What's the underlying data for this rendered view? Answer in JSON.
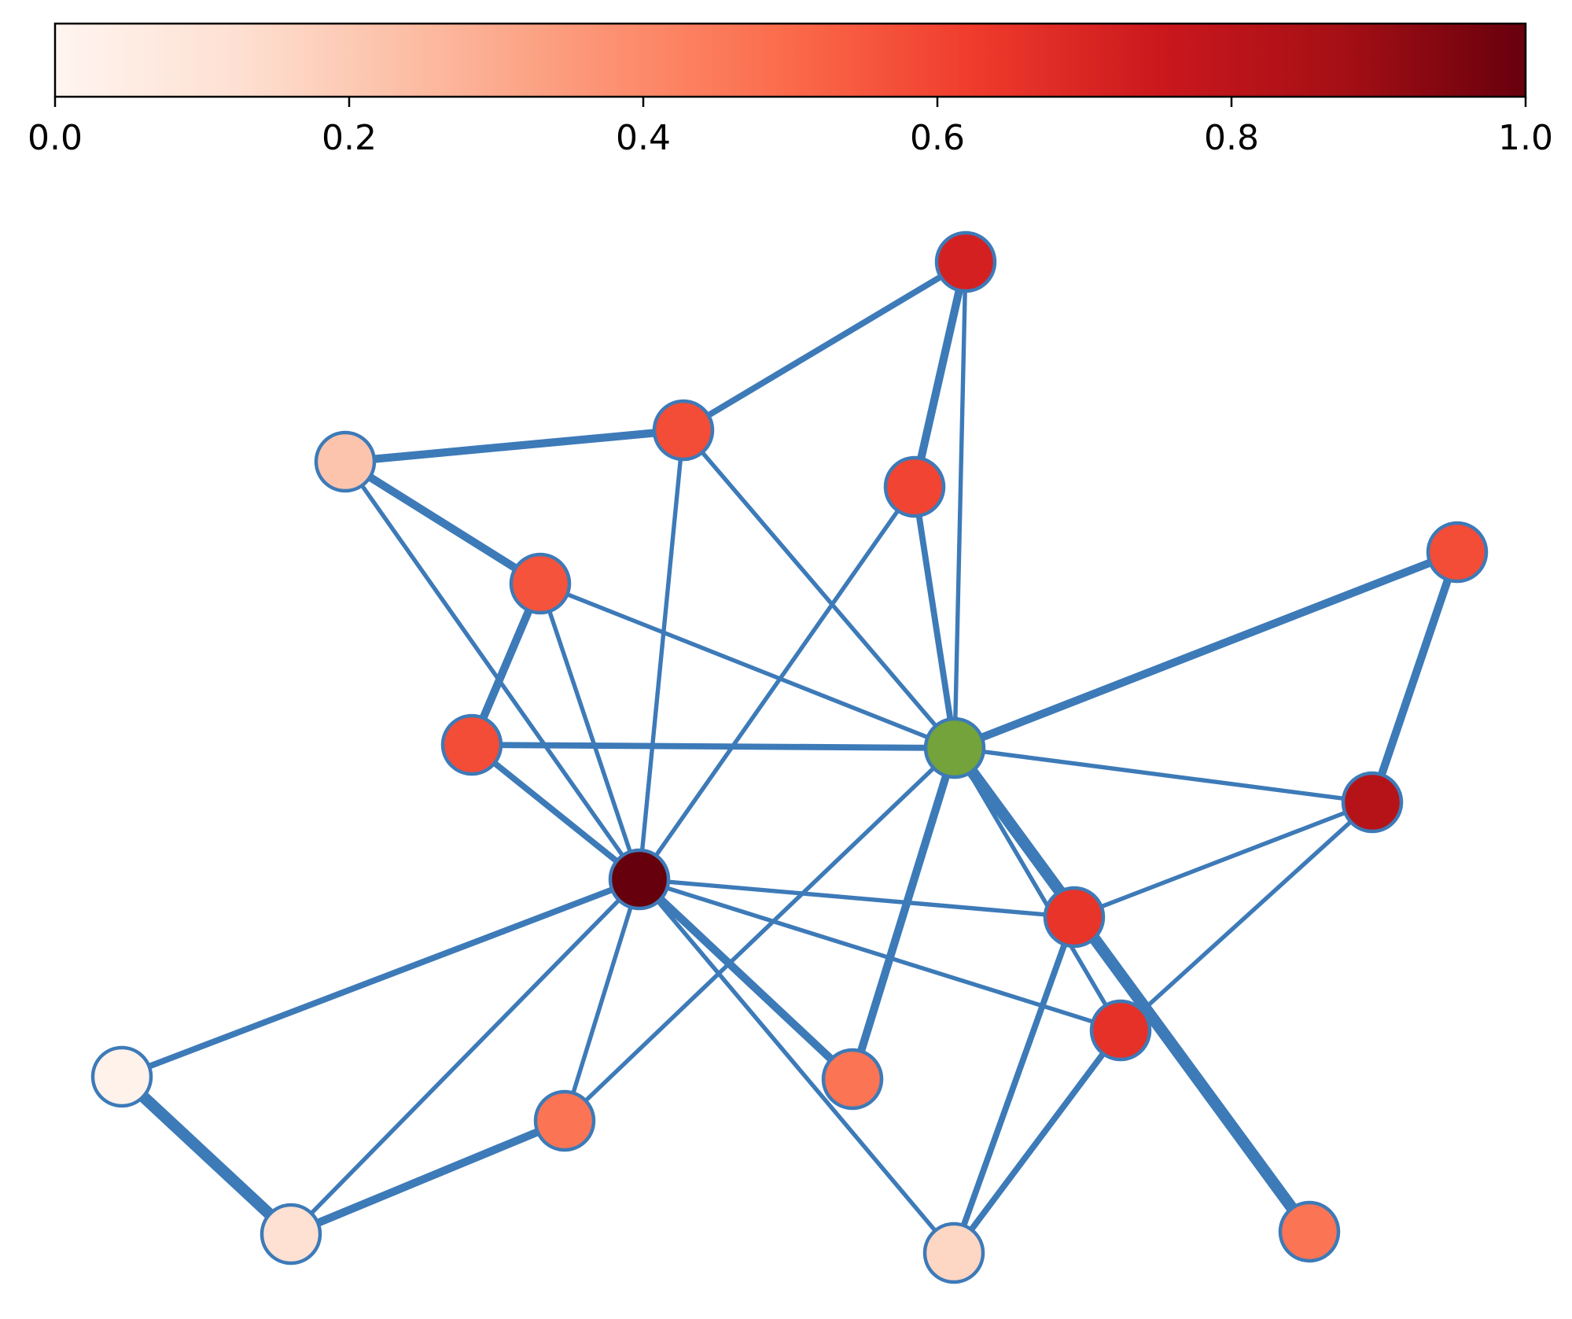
{
  "colorbar": {
    "colormap": "Reds",
    "gradient_stops": [
      "#fff5f0",
      "#fee0d2",
      "#fcbba1",
      "#fc9272",
      "#fb6a4a",
      "#ef3b2c",
      "#cb181d",
      "#a50f15",
      "#67000d"
    ],
    "ticks": [
      {
        "value": 0.0,
        "label": "0.0"
      },
      {
        "value": 0.2,
        "label": "0.2"
      },
      {
        "value": 0.4,
        "label": "0.4"
      },
      {
        "value": 0.6,
        "label": "0.6"
      },
      {
        "value": 0.8,
        "label": "0.8"
      },
      {
        "value": 1.0,
        "label": "1.0"
      }
    ]
  },
  "graph": {
    "edge_color": "#3d7ab8",
    "node_border_color": "#3d7ab8",
    "source_node_color": "#73a33a",
    "nodes": [
      {
        "id": "a",
        "value": 0.72,
        "is_source": false
      },
      {
        "id": "b",
        "value": 0.58,
        "is_source": false
      },
      {
        "id": "c",
        "value": 0.22,
        "is_source": false
      },
      {
        "id": "d",
        "value": 0.6,
        "is_source": false
      },
      {
        "id": "e",
        "value": 0.56,
        "is_source": false
      },
      {
        "id": "f",
        "value": 0.58,
        "is_source": false
      },
      {
        "id": "g",
        "value": 0.58,
        "is_source": false
      },
      {
        "id": "h",
        "value": null,
        "is_source": true
      },
      {
        "id": "i",
        "value": 0.82,
        "is_source": false
      },
      {
        "id": "j",
        "value": 1.0,
        "is_source": false
      },
      {
        "id": "k",
        "value": 0.65,
        "is_source": false
      },
      {
        "id": "l",
        "value": 0.66,
        "is_source": false
      },
      {
        "id": "m",
        "value": 0.02,
        "is_source": false
      },
      {
        "id": "n",
        "value": 0.47,
        "is_source": false
      },
      {
        "id": "o",
        "value": 0.47,
        "is_source": false
      },
      {
        "id": "p",
        "value": 0.12,
        "is_source": false
      },
      {
        "id": "q",
        "value": 0.16,
        "is_source": false
      },
      {
        "id": "r",
        "value": 0.47,
        "is_source": false
      }
    ],
    "edges": [
      {
        "source": "a",
        "target": "b",
        "weight": 2
      },
      {
        "source": "a",
        "target": "d",
        "weight": 3
      },
      {
        "source": "a",
        "target": "h",
        "weight": 1
      },
      {
        "source": "c",
        "target": "b",
        "weight": 3
      },
      {
        "source": "c",
        "target": "e",
        "weight": 3
      },
      {
        "source": "c",
        "target": "j",
        "weight": 1
      },
      {
        "source": "b",
        "target": "j",
        "weight": 1
      },
      {
        "source": "b",
        "target": "h",
        "weight": 1
      },
      {
        "source": "d",
        "target": "h",
        "weight": 2
      },
      {
        "source": "d",
        "target": "j",
        "weight": 1
      },
      {
        "source": "e",
        "target": "g",
        "weight": 3
      },
      {
        "source": "e",
        "target": "h",
        "weight": 1
      },
      {
        "source": "e",
        "target": "j",
        "weight": 1
      },
      {
        "source": "g",
        "target": "h",
        "weight": 2
      },
      {
        "source": "g",
        "target": "j",
        "weight": 2
      },
      {
        "source": "f",
        "target": "h",
        "weight": 3
      },
      {
        "source": "f",
        "target": "i",
        "weight": 3
      },
      {
        "source": "h",
        "target": "i",
        "weight": 1
      },
      {
        "source": "h",
        "target": "l",
        "weight": 1
      },
      {
        "source": "h",
        "target": "r",
        "weight": 5
      },
      {
        "source": "h",
        "target": "n",
        "weight": 3
      },
      {
        "source": "h",
        "target": "o",
        "weight": 1
      },
      {
        "source": "i",
        "target": "k",
        "weight": 1
      },
      {
        "source": "i",
        "target": "l",
        "weight": 1
      },
      {
        "source": "j",
        "target": "k",
        "weight": 1
      },
      {
        "source": "j",
        "target": "l",
        "weight": 1
      },
      {
        "source": "j",
        "target": "m",
        "weight": 2
      },
      {
        "source": "j",
        "target": "n",
        "weight": 3
      },
      {
        "source": "j",
        "target": "o",
        "weight": 1
      },
      {
        "source": "j",
        "target": "p",
        "weight": 1
      },
      {
        "source": "j",
        "target": "q",
        "weight": 1
      },
      {
        "source": "k",
        "target": "q",
        "weight": 2
      },
      {
        "source": "l",
        "target": "q",
        "weight": 2
      },
      {
        "source": "m",
        "target": "p",
        "weight": 5
      },
      {
        "source": "o",
        "target": "p",
        "weight": 3
      }
    ]
  }
}
